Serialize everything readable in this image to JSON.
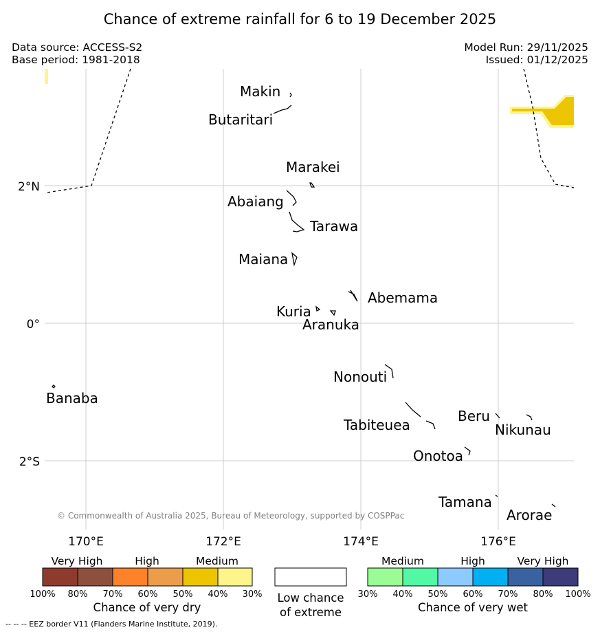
{
  "title": "Chance of extreme rainfall for 6 to 19 December 2025",
  "meta": {
    "data_source": "Data source: ACCESS-S2",
    "base_period": "Base period: 1981-2018",
    "model_run": "Model Run: 29/11/2025",
    "issued": "Issued: 01/12/2025"
  },
  "map": {
    "lat_labels": [
      "2°N",
      "0°",
      "2°S"
    ],
    "lon_labels": [
      "170°E",
      "172°E",
      "174°E",
      "176°E"
    ],
    "islands": [
      "Makin",
      "Butaritari",
      "Marakei",
      "Abaiang",
      "Tarawa",
      "Maiana",
      "Abemama",
      "Kuria",
      "Aranuka",
      "Nonouti",
      "Banaba",
      "Beru",
      "Nikunau",
      "Tabiteuea",
      "Onotoa",
      "Tamana",
      "Arorae"
    ],
    "copyright": "© Commonwealth of Australia 2025, Bureau of Meteorology, supported by COSPPac",
    "eez_color": "#000000",
    "shading_colors": {
      "medium_dry": "#ecc500",
      "medium_dry_light": "#fdf58b"
    }
  },
  "legend": {
    "dry": {
      "categories": [
        "Very High",
        "High",
        "Medium"
      ],
      "ticks": [
        "100%",
        "80%",
        "70%",
        "60%",
        "50%",
        "40%",
        "30%"
      ],
      "colors": [
        "#8e3b2e",
        "#8d503d",
        "#fd8229",
        "#ec9d4b",
        "#ecc500",
        "#fdf58b"
      ],
      "caption": "Chance of very dry"
    },
    "low": {
      "line1": "Low chance",
      "line2": "of extreme"
    },
    "wet": {
      "categories": [
        "Medium",
        "High",
        "Very High"
      ],
      "ticks": [
        "30%",
        "40%",
        "50%",
        "60%",
        "70%",
        "80%",
        "100%"
      ],
      "colors": [
        "#9afc94",
        "#52f8a4",
        "#8ccaff",
        "#00b0f0",
        "#3a62a0",
        "#3d3b7a"
      ],
      "caption": "Chance of very wet"
    }
  },
  "footer": "--  --  -- EEZ border V11 (Flanders Marine Institute, 2019)."
}
